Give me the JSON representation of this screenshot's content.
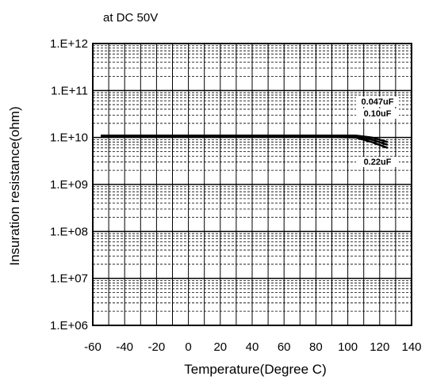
{
  "chart_data": {
    "type": "line",
    "title": "",
    "subtitle": "at DC 50V",
    "xlabel": "Temperature(Degree C)",
    "ylabel": "Insuration resistance(ohm)",
    "xlim": [
      -60,
      140
    ],
    "ylim": [
      1000000,
      1000000000000
    ],
    "y_scale": "log",
    "grid": true,
    "x_ticks": [
      "-60",
      "-40",
      "-20",
      "0",
      "20",
      "40",
      "60",
      "80",
      "100",
      "120",
      "140"
    ],
    "y_ticks": [
      "1.E+06",
      "1.E+07",
      "1.E+08",
      "1.E+09",
      "1.E+10",
      "1.E+11",
      "1.E+12"
    ],
    "series": [
      {
        "name": "0.047uF",
        "x": [
          -55,
          -20,
          0,
          20,
          40,
          60,
          85,
          105,
          115,
          125
        ],
        "y": [
          11000000000,
          11000000000,
          11000000000,
          11000000000,
          11000000000,
          11000000000,
          11000000000,
          11000000000,
          10000000000,
          8000000000
        ]
      },
      {
        "name": "0.10uF",
        "x": [
          -55,
          -20,
          0,
          20,
          40,
          60,
          85,
          105,
          115,
          125
        ],
        "y": [
          10700000000,
          10700000000,
          10700000000,
          10700000000,
          10700000000,
          10700000000,
          10700000000,
          10700000000,
          9000000000,
          7000000000
        ]
      },
      {
        "name": "0.22uF",
        "x": [
          -55,
          -20,
          0,
          20,
          40,
          60,
          85,
          105,
          115,
          125
        ],
        "y": [
          10400000000,
          10400000000,
          10400000000,
          10400000000,
          10400000000,
          10400000000,
          10400000000,
          10000000000,
          8000000000,
          6000000000
        ]
      }
    ],
    "series_labels": [
      "0.047uF",
      "0.10uF",
      "0.22uF"
    ],
    "line_color": "#000000",
    "background_color": "#ffffff"
  }
}
